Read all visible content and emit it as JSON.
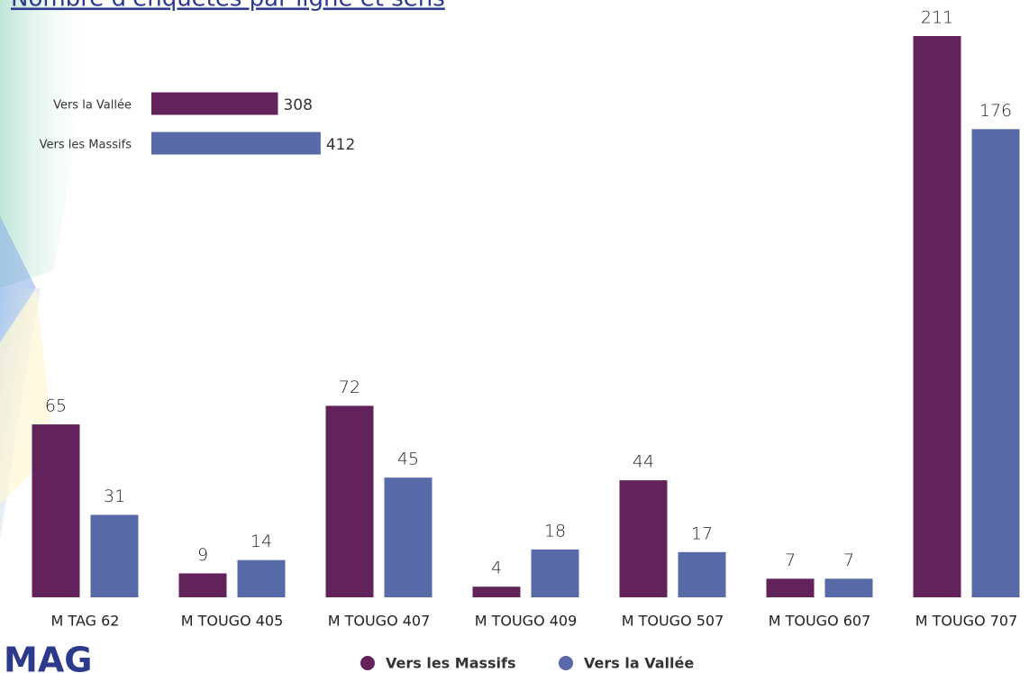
{
  "logo": "MAG",
  "chart_data": [
    {
      "type": "bar",
      "title": "Nombre d'enquêtes par ligne et sens",
      "categories": [
        "M TAG 62",
        "M TOUGO 405",
        "M TOUGO 407",
        "M TOUGO 409",
        "M TOUGO 507",
        "M TOUGO 607",
        "M TOUGO 707"
      ],
      "series": [
        {
          "name": "Vers les Massifs",
          "color": "#62235a",
          "values": [
            65,
            9,
            72,
            4,
            44,
            7,
            211
          ]
        },
        {
          "name": "Vers la Vallée",
          "color": "#586aa8",
          "values": [
            31,
            14,
            45,
            18,
            17,
            7,
            176
          ]
        }
      ],
      "legend": "bottom"
    },
    {
      "type": "hbar",
      "categories": [
        "Vers la Vallée",
        "Vers les Massifs"
      ],
      "values": [
        308,
        412
      ],
      "colors": [
        "#62235a",
        "#586aa8"
      ]
    }
  ]
}
